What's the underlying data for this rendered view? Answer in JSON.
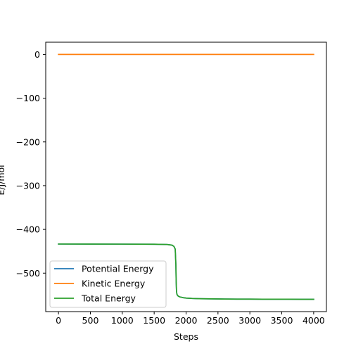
{
  "chart_data": {
    "type": "line",
    "title": "",
    "xlabel": "Steps",
    "ylabel": "E/J/mol",
    "xlim": [
      -200,
      4200
    ],
    "ylim": [
      -588,
      28
    ],
    "xticks": [
      0,
      500,
      1000,
      1500,
      2000,
      2500,
      3000,
      3500,
      4000
    ],
    "xtick_labels": [
      "0",
      "500",
      "1000",
      "1500",
      "2000",
      "2500",
      "3000",
      "3500",
      "4000"
    ],
    "yticks": [
      0,
      -100,
      -200,
      -300,
      -400,
      -500
    ],
    "ytick_labels": [
      "0",
      "−100",
      "−200",
      "−300",
      "−400",
      "−500"
    ],
    "grid": false,
    "legend_position": "lower-left",
    "series": [
      {
        "name": "Potential Energy",
        "color": "#1f77b4",
        "x": [
          0,
          500,
          1000,
          1500,
          1700,
          1780,
          1810,
          1830,
          1840,
          1845,
          1850,
          1855,
          1860,
          1870,
          1880,
          1900,
          1950,
          2000,
          2100,
          2200,
          2400,
          2600,
          2800,
          3000,
          3200,
          3400,
          3600,
          3800,
          4000
        ],
        "y": [
          -433.5,
          -433.6,
          -433.7,
          -434.0,
          -434.5,
          -436.0,
          -439.0,
          -445.0,
          -480.0,
          -520.0,
          -541.0,
          -547.0,
          -549.5,
          -551.5,
          -552.8,
          -554.3,
          -556.0,
          -557.0,
          -557.9,
          -558.4,
          -558.9,
          -559.2,
          -559.4,
          -559.5,
          -559.6,
          -559.7,
          -559.7,
          -559.8,
          -559.8
        ]
      },
      {
        "name": "Kinetic Energy",
        "color": "#ff7f0e",
        "x": [
          0,
          1000,
          2000,
          3000,
          4000
        ],
        "y": [
          0,
          0,
          0,
          0,
          0
        ]
      },
      {
        "name": "Total Energy",
        "color": "#2ca02c",
        "x": [
          0,
          500,
          1000,
          1500,
          1700,
          1780,
          1810,
          1830,
          1840,
          1845,
          1850,
          1855,
          1860,
          1870,
          1880,
          1900,
          1950,
          2000,
          2100,
          2200,
          2400,
          2600,
          2800,
          3000,
          3200,
          3400,
          3600,
          3800,
          4000
        ],
        "y": [
          -433.5,
          -433.6,
          -433.7,
          -434.0,
          -434.5,
          -436.0,
          -439.0,
          -445.0,
          -480.0,
          -520.0,
          -541.0,
          -547.0,
          -549.5,
          -551.5,
          -552.8,
          -554.3,
          -556.0,
          -557.0,
          -557.9,
          -558.4,
          -558.9,
          -559.2,
          -559.4,
          -559.5,
          -559.6,
          -559.7,
          -559.7,
          -559.8,
          -559.8
        ]
      }
    ]
  }
}
